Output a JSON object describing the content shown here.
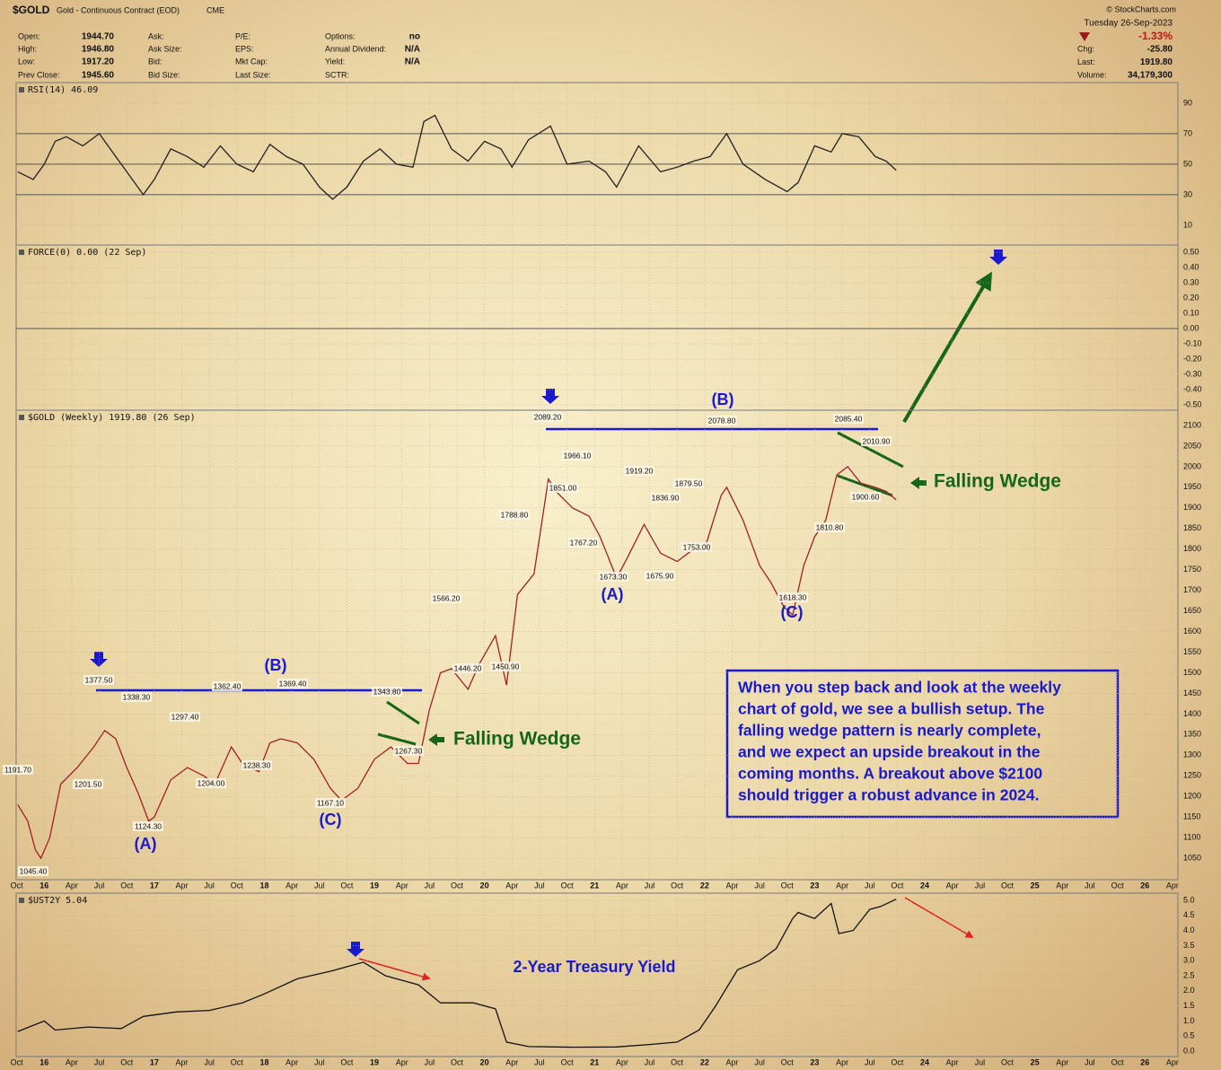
{
  "header": {
    "symbol": "$GOLD",
    "name": "Gold - Continuous Contract (EOD)",
    "exchange": "CME",
    "copyright": "© StockCharts.com",
    "date": "Tuesday  26-Sep-2023",
    "change_pct": "-1.33%",
    "quote_columns": [
      [
        {
          "label": "Open:",
          "value": "1944.70"
        },
        {
          "label": "High:",
          "value": "1946.80"
        },
        {
          "label": "Low:",
          "value": "1917.20"
        },
        {
          "label": "Prev Close:",
          "value": "1945.60"
        }
      ],
      [
        {
          "label": "Ask:"
        },
        {
          "label": "Ask Size:"
        },
        {
          "label": "Bid:"
        },
        {
          "label": "Bid Size:"
        }
      ],
      [
        {
          "label": "P/E:"
        },
        {
          "label": "EPS:"
        },
        {
          "label": "Mkt Cap:"
        },
        {
          "label": "Last Size:"
        }
      ],
      [
        {
          "label": "Options:",
          "value": "no"
        },
        {
          "label": "Annual Dividend:",
          "value": "N/A"
        },
        {
          "label": "Yield:",
          "value": "N/A"
        },
        {
          "label": "SCTR:"
        }
      ]
    ],
    "right_fields": [
      {
        "label": "Chg:",
        "value": "-25.80"
      },
      {
        "label": "Last:",
        "value": "1919.80"
      },
      {
        "label": "Volume:",
        "value": "34,179,300"
      }
    ]
  },
  "chart_data": [
    {
      "type": "line",
      "title": "RSI(14) 46.09",
      "color": "#222222",
      "grid": true,
      "xlim": [
        2015.745,
        2026.3
      ],
      "ylim": [
        -3,
        103.5
      ],
      "yticks": [
        90,
        70,
        50,
        30,
        10
      ],
      "x": [
        2015.76,
        2015.9,
        2016.0,
        2016.1,
        2016.2,
        2016.35,
        2016.5,
        2016.6,
        2016.75,
        2016.9,
        2017.0,
        2017.15,
        2017.3,
        2017.45,
        2017.6,
        2017.75,
        2017.9,
        2018.05,
        2018.2,
        2018.35,
        2018.5,
        2018.62,
        2018.75,
        2018.9,
        2019.05,
        2019.2,
        2019.35,
        2019.45,
        2019.55,
        2019.7,
        2019.85,
        2020.0,
        2020.15,
        2020.25,
        2020.4,
        2020.6,
        2020.75,
        2020.95,
        2021.1,
        2021.2,
        2021.4,
        2021.6,
        2021.75,
        2021.9,
        2022.05,
        2022.2,
        2022.35,
        2022.55,
        2022.75,
        2022.85,
        2023.0,
        2023.15,
        2023.25,
        2023.4,
        2023.55,
        2023.65,
        2023.74
      ],
      "values": [
        45,
        40,
        50,
        65,
        68,
        62,
        70,
        60,
        45,
        30,
        40,
        60,
        55,
        48,
        62,
        50,
        45,
        63,
        55,
        50,
        35,
        27,
        35,
        52,
        60,
        50,
        48,
        78,
        82,
        60,
        52,
        65,
        60,
        48,
        66,
        75,
        50,
        52,
        45,
        35,
        62,
        45,
        48,
        52,
        55,
        70,
        50,
        40,
        32,
        38,
        62,
        58,
        70,
        68,
        55,
        52,
        46.09
      ]
    },
    {
      "type": "line",
      "title": "FORCE(0) 0.00 (22 Sep)",
      "grid": true,
      "xlim": [
        2015.745,
        2026.3
      ],
      "ylim": [
        -0.535,
        0.547
      ],
      "yticks": [
        {
          "value": 0.5,
          "label": "0.50"
        },
        {
          "value": 0.4,
          "label": "0.40"
        },
        {
          "value": 0.3,
          "label": "0.30"
        },
        {
          "value": 0.2,
          "label": "0.20"
        },
        {
          "value": 0.1,
          "label": "0.10"
        },
        {
          "value": 0,
          "label": "0.00"
        },
        {
          "value": -0.1,
          "label": "-0.10"
        },
        {
          "value": -0.2,
          "label": "-0.20"
        },
        {
          "value": -0.3,
          "label": "-0.30"
        },
        {
          "value": -0.4,
          "label": "-0.40"
        },
        {
          "value": -0.5,
          "label": "-0.50"
        }
      ]
    },
    {
      "type": "line",
      "title": "$GOLD (Weekly) 1919.80 (26 Sep)",
      "color": "#a0202a",
      "grid": true,
      "xlim": [
        2015.745,
        2026.3
      ],
      "ylim": [
        998,
        2137
      ],
      "yticks": [
        2100,
        2050,
        2000,
        1950,
        1900,
        1850,
        1800,
        1750,
        1700,
        1650,
        1600,
        1550,
        1500,
        1450,
        1400,
        1350,
        1300,
        1250,
        1200,
        1150,
        1100,
        1050
      ],
      "xticks": [
        {
          "value": 2015.75,
          "label": "Oct"
        },
        {
          "value": 2016,
          "label": "16"
        },
        {
          "value": 2016.25,
          "label": "Apr"
        },
        {
          "value": 2016.5,
          "label": "Jul"
        },
        {
          "value": 2016.75,
          "label": "Oct"
        },
        {
          "value": 2017,
          "label": "17"
        },
        {
          "value": 2017.25,
          "label": "Apr"
        },
        {
          "value": 2017.5,
          "label": "Jul"
        },
        {
          "value": 2017.75,
          "label": "Oct"
        },
        {
          "value": 2018,
          "label": "18"
        },
        {
          "value": 2018.25,
          "label": "Apr"
        },
        {
          "value": 2018.5,
          "label": "Jul"
        },
        {
          "value": 2018.75,
          "label": "Oct"
        },
        {
          "value": 2019,
          "label": "19"
        },
        {
          "value": 2019.25,
          "label": "Apr"
        },
        {
          "value": 2019.5,
          "label": "Jul"
        },
        {
          "value": 2019.75,
          "label": "Oct"
        },
        {
          "value": 2020,
          "label": "20"
        },
        {
          "value": 2020.25,
          "label": "Apr"
        },
        {
          "value": 2020.5,
          "label": "Jul"
        },
        {
          "value": 2020.75,
          "label": "Oct"
        },
        {
          "value": 2021,
          "label": "21"
        },
        {
          "value": 2021.25,
          "label": "Apr"
        },
        {
          "value": 2021.5,
          "label": "Jul"
        },
        {
          "value": 2021.75,
          "label": "Oct"
        },
        {
          "value": 2022,
          "label": "22"
        },
        {
          "value": 2022.25,
          "label": "Apr"
        },
        {
          "value": 2022.5,
          "label": "Jul"
        },
        {
          "value": 2022.75,
          "label": "Oct"
        },
        {
          "value": 2023,
          "label": "23"
        },
        {
          "value": 2023.25,
          "label": "Apr"
        },
        {
          "value": 2023.5,
          "label": "Jul"
        },
        {
          "value": 2023.75,
          "label": "Oct"
        },
        {
          "value": 2024,
          "label": "24"
        },
        {
          "value": 2024.25,
          "label": "Apr"
        },
        {
          "value": 2024.5,
          "label": "Jul"
        },
        {
          "value": 2024.75,
          "label": "Oct"
        },
        {
          "value": 2025,
          "label": "25"
        },
        {
          "value": 2025.25,
          "label": "Apr"
        },
        {
          "value": 2025.5,
          "label": "Jul"
        },
        {
          "value": 2025.75,
          "label": "Oct"
        },
        {
          "value": 2026,
          "label": "26"
        },
        {
          "value": 2026.25,
          "label": "Apr"
        }
      ],
      "x": [
        2015.76,
        2015.85,
        2015.92,
        2015.97,
        2016.05,
        2016.15,
        2016.3,
        2016.45,
        2016.55,
        2016.65,
        2016.75,
        2016.85,
        2016.95,
        2017.0,
        2017.15,
        2017.3,
        2017.45,
        2017.55,
        2017.7,
        2017.8,
        2017.95,
        2018.05,
        2018.15,
        2018.3,
        2018.45,
        2018.6,
        2018.7,
        2018.85,
        2019.0,
        2019.15,
        2019.3,
        2019.4,
        2019.5,
        2019.6,
        2019.7,
        2019.85,
        2019.95,
        2020.1,
        2020.2,
        2020.3,
        2020.45,
        2020.58,
        2020.65,
        2020.8,
        2020.95,
        2021.05,
        2021.2,
        2021.3,
        2021.45,
        2021.6,
        2021.75,
        2021.9,
        2022.0,
        2022.15,
        2022.2,
        2022.35,
        2022.5,
        2022.6,
        2022.72,
        2022.8,
        2022.9,
        2023.0,
        2023.1,
        2023.2,
        2023.3,
        2023.42,
        2023.55,
        2023.65,
        2023.74
      ],
      "values": [
        1180,
        1140,
        1070,
        1050,
        1100,
        1230,
        1270,
        1320,
        1360,
        1340,
        1270,
        1210,
        1140,
        1150,
        1240,
        1270,
        1250,
        1230,
        1320,
        1280,
        1260,
        1330,
        1340,
        1330,
        1290,
        1220,
        1190,
        1220,
        1290,
        1320,
        1280,
        1280,
        1410,
        1500,
        1510,
        1460,
        1520,
        1590,
        1470,
        1690,
        1740,
        1970,
        1940,
        1900,
        1880,
        1830,
        1730,
        1780,
        1860,
        1790,
        1770,
        1800,
        1800,
        1930,
        1950,
        1870,
        1760,
        1720,
        1660,
        1640,
        1760,
        1830,
        1870,
        1980,
        2000,
        1960,
        1950,
        1940,
        1919.8
      ],
      "price_labels": [
        {
          "value": 1191.7,
          "label": "1191.70"
        },
        {
          "value": 1045.4,
          "label": "1045.40"
        },
        {
          "value": 1377.5,
          "label": "1377.50"
        },
        {
          "value": 1338.3,
          "label": "1338.30"
        },
        {
          "value": 1201.5,
          "label": "1201.50"
        },
        {
          "value": 1124.3,
          "label": "1124.30"
        },
        {
          "value": 1297.4,
          "label": "1297.40"
        },
        {
          "value": 1204,
          "label": "1204.00"
        },
        {
          "value": 1362.4,
          "label": "1362.40"
        },
        {
          "value": 1238.3,
          "label": "1238.30"
        },
        {
          "value": 1369.4,
          "label": "1369.40"
        },
        {
          "value": 1167.1,
          "label": "1167.10"
        },
        {
          "value": 1343.8,
          "label": "1343.80"
        },
        {
          "value": 1267.3,
          "label": "1267.30"
        },
        {
          "value": 1566.2,
          "label": "1566.20"
        },
        {
          "value": 1446.2,
          "label": "1446.20"
        },
        {
          "value": 1450.9,
          "label": "1450.90"
        },
        {
          "value": 1788.8,
          "label": "1788.80"
        },
        {
          "value": 2089.2,
          "label": "2089.20"
        },
        {
          "value": 1966.1,
          "label": "1966.10"
        },
        {
          "value": 1851,
          "label": "1851.00"
        },
        {
          "value": 1767.2,
          "label": "1767.20"
        },
        {
          "value": 1673.3,
          "label": "1673.30"
        },
        {
          "value": 1919.2,
          "label": "1919.20"
        },
        {
          "value": 1836.9,
          "label": "1836.90"
        },
        {
          "value": 1675.9,
          "label": "1675.90"
        },
        {
          "value": 1879.5,
          "label": "1879.50"
        },
        {
          "value": 1753,
          "label": "1753.00"
        },
        {
          "value": 2078.8,
          "label": "2078.80"
        },
        {
          "value": 1618.3,
          "label": "1618.30"
        },
        {
          "value": 1810.8,
          "label": "1810.80"
        },
        {
          "value": 2085.4,
          "label": "2085.40"
        },
        {
          "value": 2010.9,
          "label": "2010.90"
        },
        {
          "value": 1900.6,
          "label": "1900.60"
        }
      ],
      "wave_labels": [
        "(A)",
        "(B)",
        "(C)",
        "(A)",
        "(B)",
        "(C)"
      ],
      "pattern_labels": [
        "Falling Wedge",
        "Falling Wedge"
      ],
      "text_box": [
        "When you step back and look at the weekly",
        "chart of gold, we see a bullish setup. The",
        "falling wedge pattern is nearly complete,",
        "and we expect an upside breakout in the",
        "coming months. A breakout above $2100",
        "should trigger a robust advance in 2024."
      ]
    },
    {
      "type": "line",
      "title": "$UST2Y 5.04",
      "color": "#111111",
      "grid": true,
      "annotation": "2-Year Treasury Yield",
      "xlim": [
        2015.745,
        2026.3
      ],
      "ylim": [
        -0.18,
        5.24
      ],
      "yticks": [
        {
          "value": 5,
          "label": "5.0"
        },
        {
          "value": 4.5,
          "label": "4.5"
        },
        {
          "value": 4,
          "label": "4.0"
        },
        {
          "value": 3.5,
          "label": "3.5"
        },
        {
          "value": 3,
          "label": "3.0"
        },
        {
          "value": 2.5,
          "label": "2.5"
        },
        {
          "value": 2,
          "label": "2.0"
        },
        {
          "value": 1.5,
          "label": "1.5"
        },
        {
          "value": 1,
          "label": "1.0"
        },
        {
          "value": 0.5,
          "label": "0.5"
        },
        {
          "value": 0,
          "label": "0.0"
        }
      ],
      "xticks": [
        {
          "value": 2015.75,
          "label": "Oct"
        },
        {
          "value": 2016,
          "label": "16"
        },
        {
          "value": 2016.25,
          "label": "Apr"
        },
        {
          "value": 2016.5,
          "label": "Jul"
        },
        {
          "value": 2016.75,
          "label": "Oct"
        },
        {
          "value": 2017,
          "label": "17"
        },
        {
          "value": 2017.25,
          "label": "Apr"
        },
        {
          "value": 2017.5,
          "label": "Jul"
        },
        {
          "value": 2017.75,
          "label": "Oct"
        },
        {
          "value": 2018,
          "label": "18"
        },
        {
          "value": 2018.25,
          "label": "Apr"
        },
        {
          "value": 2018.5,
          "label": "Jul"
        },
        {
          "value": 2018.75,
          "label": "Oct"
        },
        {
          "value": 2019,
          "label": "19"
        },
        {
          "value": 2019.25,
          "label": "Apr"
        },
        {
          "value": 2019.5,
          "label": "Jul"
        },
        {
          "value": 2019.75,
          "label": "Oct"
        },
        {
          "value": 2020,
          "label": "20"
        },
        {
          "value": 2020.25,
          "label": "Apr"
        },
        {
          "value": 2020.5,
          "label": "Jul"
        },
        {
          "value": 2020.75,
          "label": "Oct"
        },
        {
          "value": 2021,
          "label": "21"
        },
        {
          "value": 2021.25,
          "label": "Apr"
        },
        {
          "value": 2021.5,
          "label": "Jul"
        },
        {
          "value": 2021.75,
          "label": "Oct"
        },
        {
          "value": 2022,
          "label": "22"
        },
        {
          "value": 2022.25,
          "label": "Apr"
        },
        {
          "value": 2022.5,
          "label": "Jul"
        },
        {
          "value": 2022.75,
          "label": "Oct"
        },
        {
          "value": 2023,
          "label": "23"
        },
        {
          "value": 2023.25,
          "label": "Apr"
        },
        {
          "value": 2023.5,
          "label": "Jul"
        },
        {
          "value": 2023.75,
          "label": "Oct"
        },
        {
          "value": 2024,
          "label": "24"
        },
        {
          "value": 2024.25,
          "label": "Apr"
        },
        {
          "value": 2024.5,
          "label": "Jul"
        },
        {
          "value": 2024.75,
          "label": "Oct"
        },
        {
          "value": 2025,
          "label": "25"
        },
        {
          "value": 2025.25,
          "label": "Apr"
        },
        {
          "value": 2025.5,
          "label": "Jul"
        },
        {
          "value": 2025.75,
          "label": "Oct"
        },
        {
          "value": 2026,
          "label": "26"
        },
        {
          "value": 2026.25,
          "label": "Apr"
        }
      ],
      "x": [
        2015.76,
        2016.0,
        2016.1,
        2016.4,
        2016.7,
        2016.9,
        2017.2,
        2017.5,
        2017.8,
        2018.0,
        2018.3,
        2018.6,
        2018.8,
        2018.9,
        2019.1,
        2019.4,
        2019.6,
        2019.9,
        2020.1,
        2020.2,
        2020.4,
        2020.8,
        2021.2,
        2021.5,
        2021.75,
        2021.95,
        2022.1,
        2022.3,
        2022.5,
        2022.65,
        2022.8,
        2022.85,
        2023.0,
        2023.15,
        2023.22,
        2023.35,
        2023.5,
        2023.6,
        2023.74
      ],
      "values": [
        0.65,
        1.0,
        0.7,
        0.8,
        0.75,
        1.15,
        1.3,
        1.35,
        1.6,
        1.9,
        2.4,
        2.65,
        2.85,
        2.95,
        2.5,
        2.2,
        1.6,
        1.6,
        1.4,
        0.3,
        0.15,
        0.13,
        0.14,
        0.22,
        0.3,
        0.7,
        1.5,
        2.7,
        3.0,
        3.4,
        4.4,
        4.6,
        4.4,
        4.9,
        3.9,
        4.0,
        4.7,
        4.8,
        5.04
      ]
    }
  ]
}
